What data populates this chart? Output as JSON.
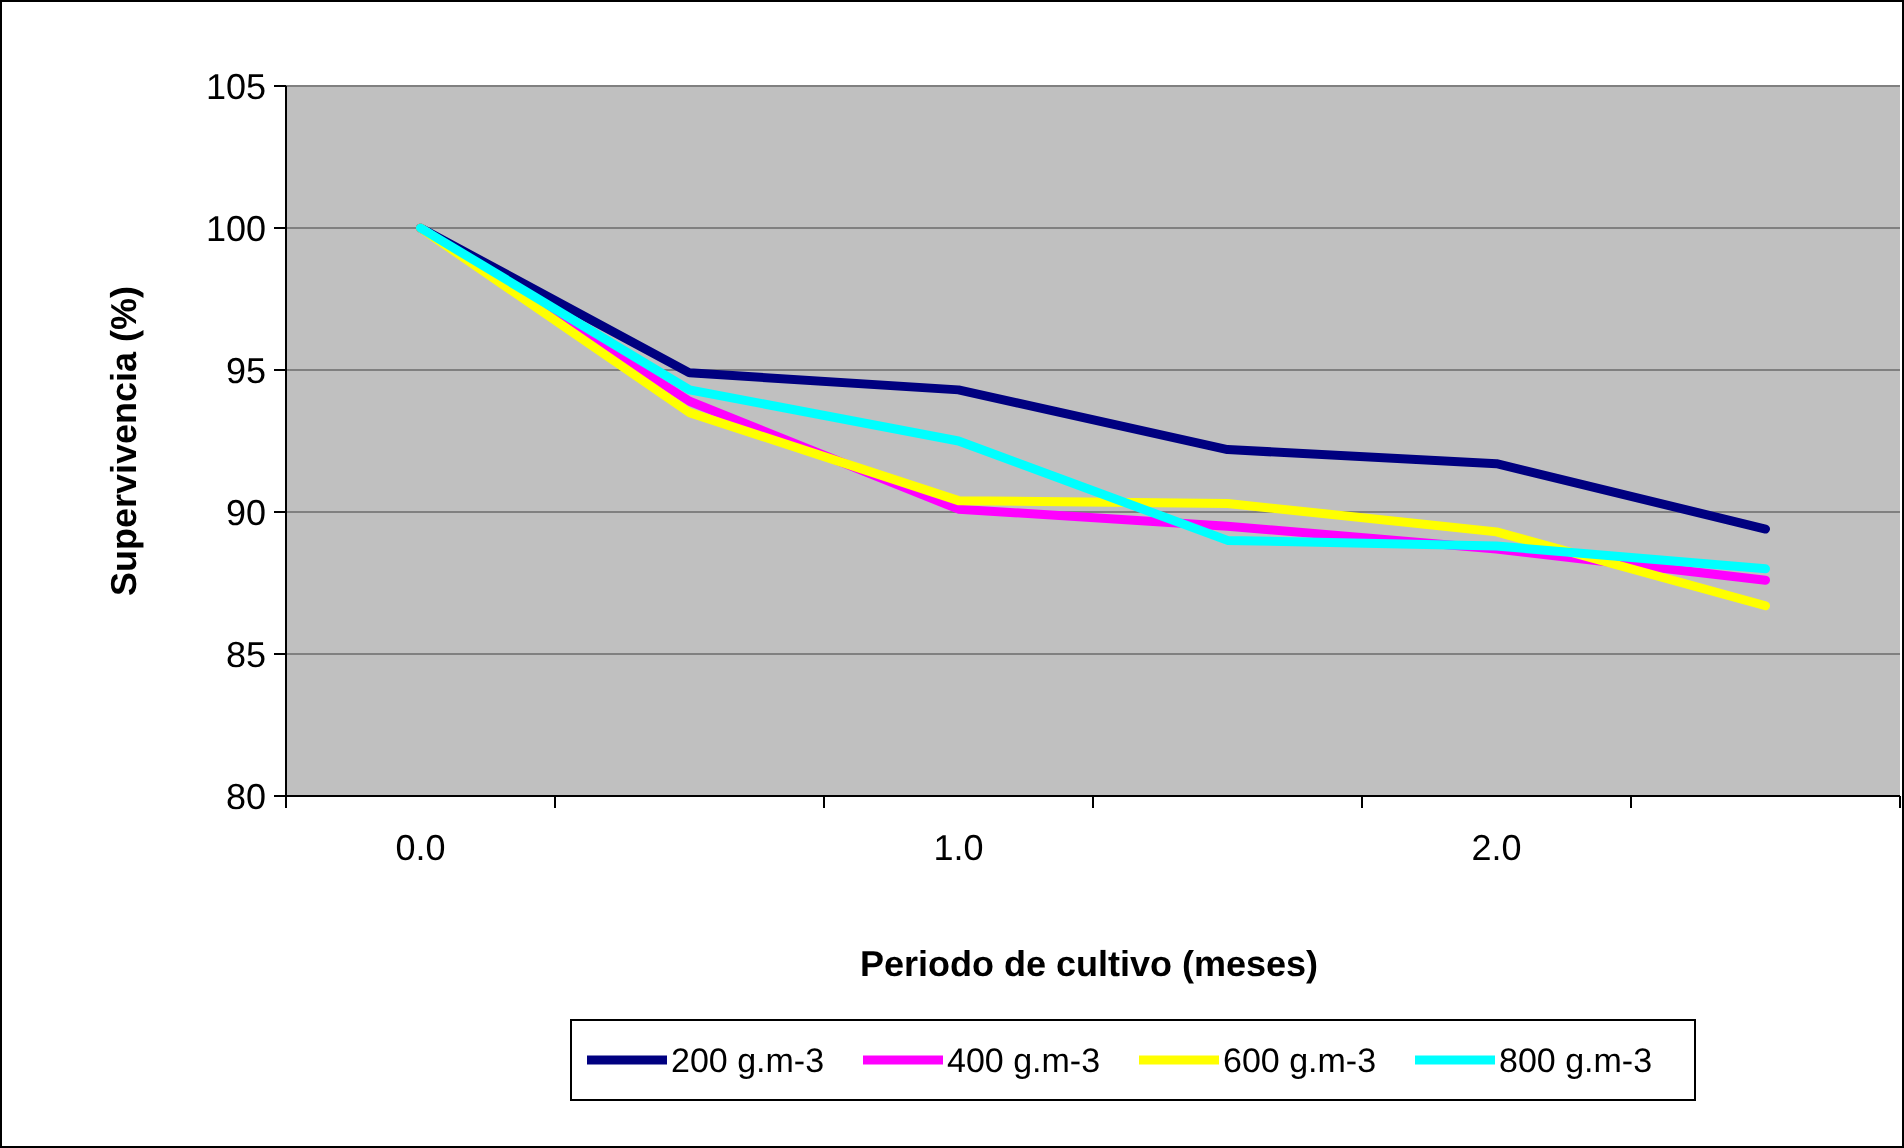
{
  "chart_data": {
    "type": "line",
    "xlabel": "Periodo de cultivo (meses)",
    "ylabel": "Supervivencia (%)",
    "categories": [
      "0.0",
      null,
      "1.0",
      null,
      "2.0",
      null
    ],
    "series": [
      {
        "name": "200 g.m-3",
        "color": "#000080",
        "values": [
          100,
          94.9,
          94.3,
          92.2,
          91.7,
          89.4
        ]
      },
      {
        "name": "400 g.m-3",
        "color": "#ff00ff",
        "values": [
          100,
          93.9,
          90.1,
          89.5,
          88.7,
          87.6
        ]
      },
      {
        "name": "600 g.m-3",
        "color": "#ffff00",
        "values": [
          100,
          93.5,
          90.4,
          90.3,
          89.3,
          86.7
        ]
      },
      {
        "name": "800 g.m-3",
        "color": "#00ffff",
        "values": [
          100,
          94.3,
          92.5,
          89.0,
          88.8,
          88.0
        ]
      }
    ],
    "ylim": [
      80,
      105
    ],
    "yticks": [
      80,
      85,
      90,
      95,
      100,
      105
    ],
    "grid": "y",
    "legend": "bottom",
    "marker": "none",
    "line_style": "solid"
  }
}
